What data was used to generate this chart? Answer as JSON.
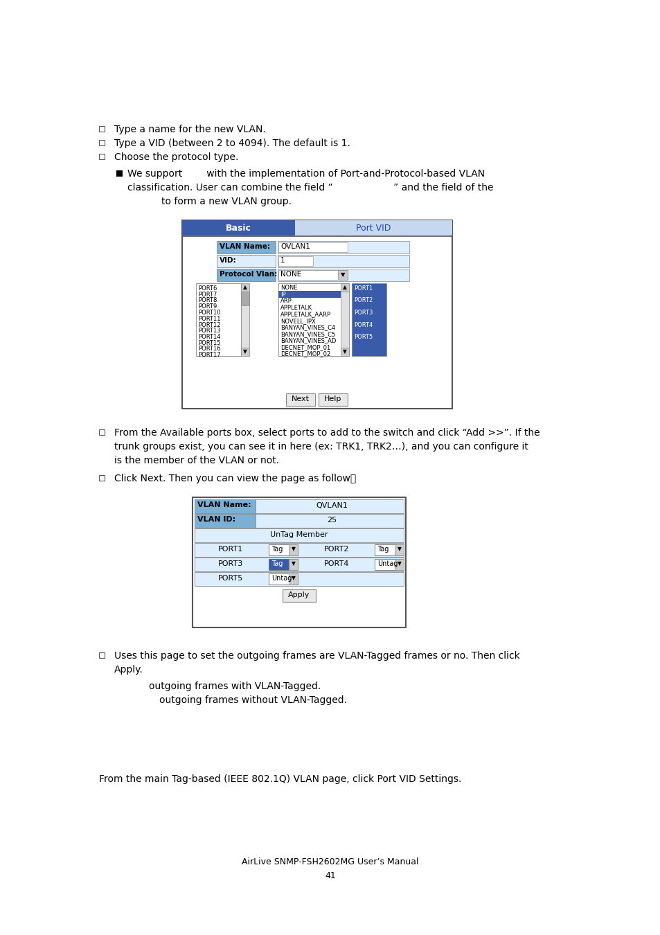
{
  "bg_color": "#ffffff",
  "bullet_items": [
    "Type a name for the new VLAN.",
    "Type a VID (between 2 to 4094). The default is 1.",
    "Choose the protocol type."
  ],
  "sub_bullet_line1": "We support        with the implementation of Port-and-Protocol-based VLAN",
  "sub_bullet_line2": "classification. User can combine the field “                    ” and the field of the",
  "sub_bullet_line3": "to form a new VLAN group.",
  "from_text": "From the main Tag-based (IEEE 802.1Q) VLAN page, click Port VID Settings.",
  "footer_text": "AirLive SNMP-FSH2602MG User’s Manual",
  "page_number": "41",
  "bullet1_text_l1": "From the Available ports box, select ports to add to the switch and click “Add >>”. If the",
  "bullet1_text_l2": "trunk groups exist, you can see it in here (ex: TRK1, TRK2…), and you can configure it",
  "bullet1_text_l3": "is the member of the VLAN or not.",
  "bullet2_text": "Click Next. Then you can view the page as follow：",
  "uses_text_line1": "Uses this page to set the outgoing frames are VLAN-Tagged frames or no. Then click",
  "uses_text_line2": "Apply.",
  "outgoing1": "outgoing frames with VLAN-Tagged.",
  "outgoing2": "outgoing frames without VLAN-Tagged.",
  "tab1_color": "#3a5aaa",
  "tab2_color": "#c5d8f0",
  "label_color": "#7bafd4",
  "row_color": "#ddeeff",
  "ports_left": [
    "PORT6",
    "PORT7",
    "PORT8",
    "PORT9",
    "PORT10",
    "PORT11",
    "PORT12",
    "PORT13",
    "PORT14",
    "PORT15",
    "PORT16",
    "PORT17"
  ],
  "protocols": [
    "NONE",
    "IP",
    "ARP",
    "APPLETALK",
    "APPLETALK_AARP",
    "NOVELL_IPX",
    "BANYAN_VINES_C4",
    "BANYAN_VINES_C5",
    "BANYAN_VINES_AD",
    "DECNET_MOP_01",
    "DECNET_MOP_02"
  ],
  "ports_right": [
    "PORT1",
    "PORT2",
    "PORT3",
    "PORT4",
    "PORT5"
  ]
}
